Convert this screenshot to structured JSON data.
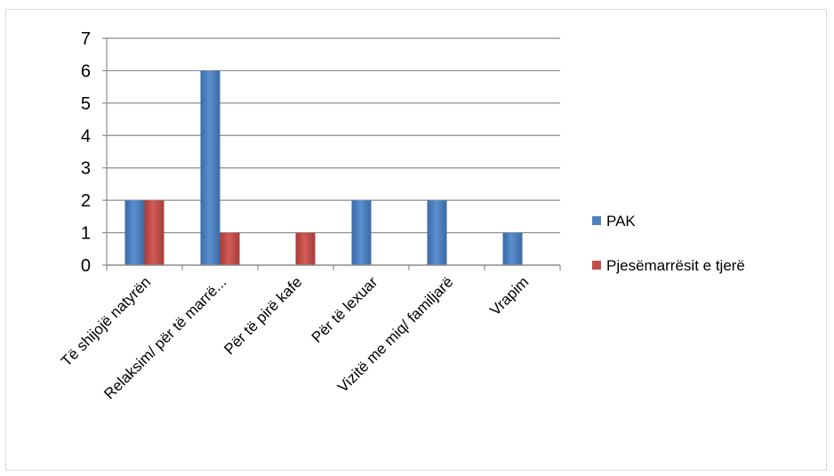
{
  "chart_data": {
    "type": "bar",
    "categories": [
      "Të shijojë natyrën",
      "Relaksim/ për të marrë...",
      "Për të pirë kafe",
      "Për të lexuar",
      "Vizitë me miq/ familjarë",
      "Vrapim"
    ],
    "series": [
      {
        "name": "PAK",
        "values": [
          2,
          6,
          0,
          2,
          2,
          1
        ],
        "color": "#4f81bd"
      },
      {
        "name": "Pjesëmarrësit e tjerë",
        "values": [
          2,
          1,
          1,
          0,
          0,
          0
        ],
        "color": "#c0504d"
      }
    ],
    "y_ticks": [
      "0",
      "1",
      "2",
      "3",
      "4",
      "5",
      "6",
      "7"
    ],
    "ylim": [
      0,
      7
    ],
    "grid": true,
    "legend_position": "right",
    "title": "",
    "xlabel": "",
    "ylabel": ""
  }
}
